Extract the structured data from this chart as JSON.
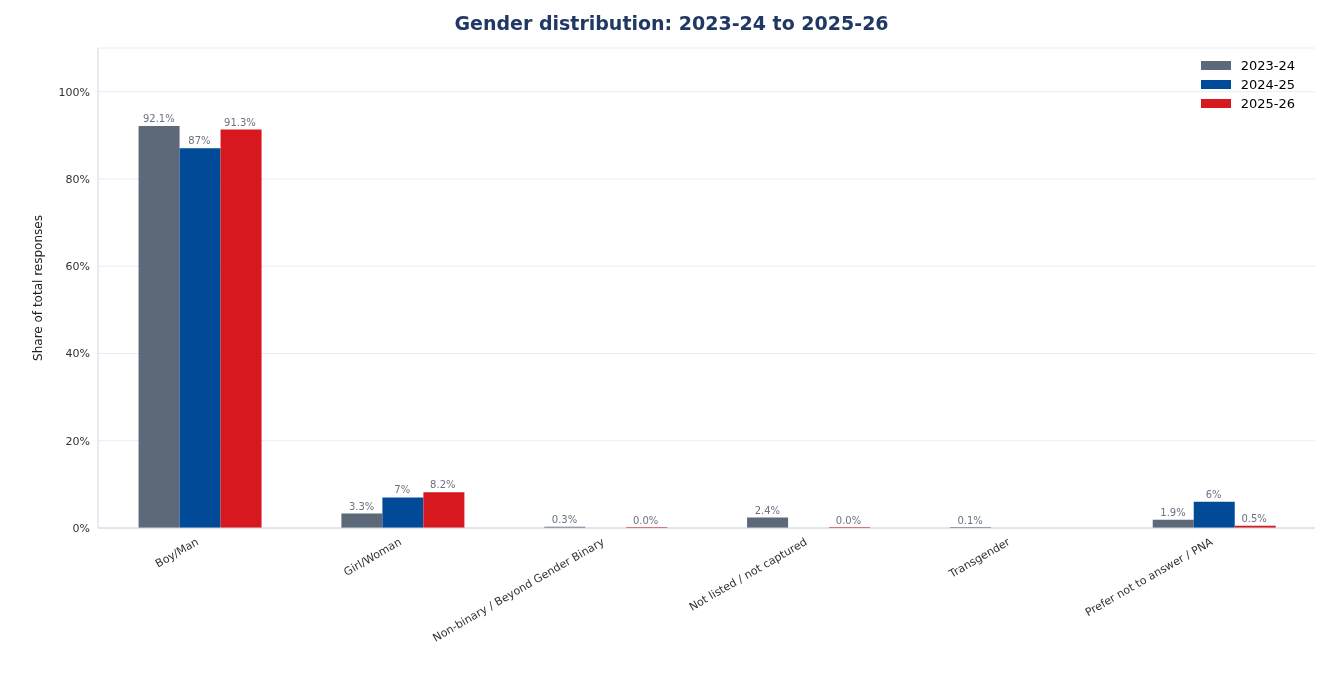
{
  "chart_data": {
    "type": "bar",
    "title": "Gender distribution: 2023-24 to 2025-26",
    "ylabel": "Share of total responses",
    "categories": [
      "Boy/Man",
      "Girl/Woman",
      "Non-binary / Beyond Gender Binary",
      "Not listed / not captured",
      "Transgender",
      "Prefer not to answer / PNA"
    ],
    "series": [
      {
        "name": "2023-24",
        "color": "#5d6878",
        "values": [
          92.1,
          3.3,
          0.3,
          2.4,
          0.1,
          1.9
        ],
        "value_labels": [
          "92.1%",
          "3.3%",
          "0.3%",
          "2.4%",
          "0.1%",
          "1.9%"
        ]
      },
      {
        "name": "2024-25",
        "color": "#004a97",
        "values": [
          87,
          7,
          null,
          null,
          null,
          6
        ],
        "value_labels": [
          "87%",
          "7%",
          null,
          null,
          null,
          "6%"
        ]
      },
      {
        "name": "2025-26",
        "color": "#d7191f",
        "values": [
          91.3,
          8.2,
          0,
          0,
          null,
          0.5
        ],
        "value_labels": [
          "91.3%",
          "8.2%",
          "0.0%",
          "0.0%",
          null,
          "0.5%"
        ]
      }
    ],
    "ylim": [
      0,
      110
    ],
    "yticks": [
      {
        "value": 0,
        "label": "0%"
      },
      {
        "value": 20,
        "label": "20%"
      },
      {
        "value": 40,
        "label": "40%"
      },
      {
        "value": 60,
        "label": "60%"
      },
      {
        "value": 80,
        "label": "80%"
      },
      {
        "value": 100,
        "label": "100%"
      }
    ],
    "grid": "y",
    "legend": "top right"
  }
}
